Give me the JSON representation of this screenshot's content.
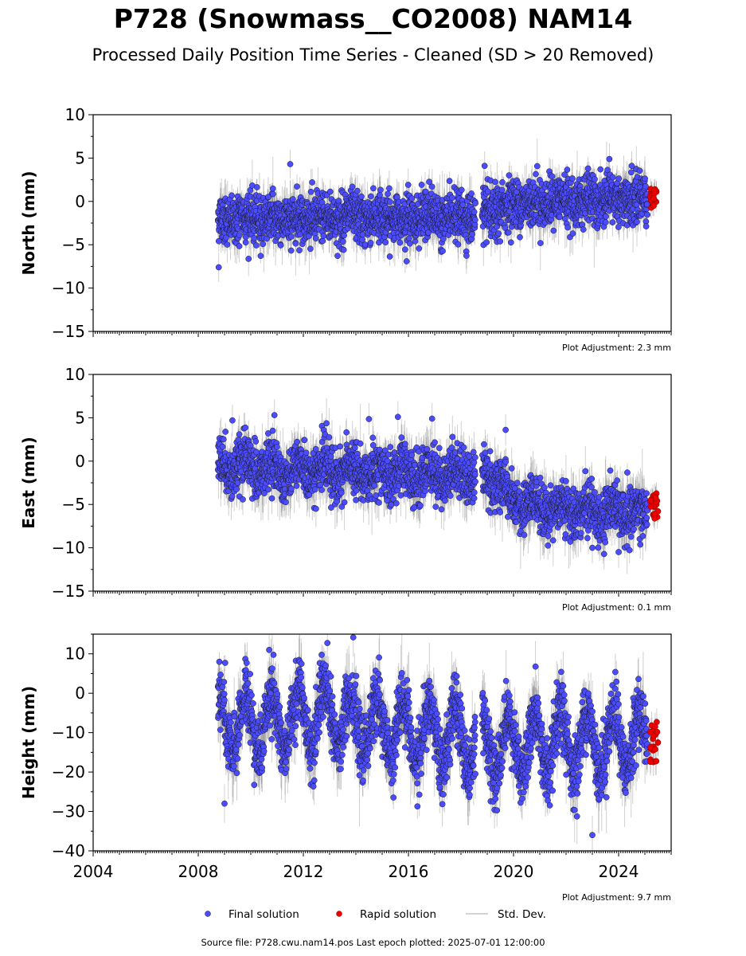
{
  "header": {
    "title": "P728 (Snowmass__CO2008) NAM14",
    "subtitle": "Processed Daily Position Time Series - Cleaned (SD > 20 Removed)"
  },
  "footer": {
    "source": "Source file: P728.cwu.nam14.pos  Last epoch plotted: 2025-07-01 12:00:00"
  },
  "legend": {
    "final_label": "Final solution",
    "rapid_label": "Rapid solution",
    "std_label": "Std. Dev."
  },
  "colors": {
    "final": "#4b4bff",
    "rapid": "#ee0000",
    "stddev": "#d3d3d3",
    "marker_edge": "#1a1a1a"
  },
  "chart_data": [
    {
      "type": "scatter",
      "panel": "north",
      "ylabel": "North (mm)",
      "xlim": [
        2004,
        2026
      ],
      "ylim": [
        -15,
        10
      ],
      "yticks": [
        -15,
        -10,
        -5,
        0,
        5,
        10
      ],
      "xticks": [
        2004,
        2008,
        2012,
        2016,
        2020,
        2024
      ],
      "show_xtick_labels": false,
      "adjustment": "Plot Adjustment: 2.3 mm",
      "final_range": [
        2008.75,
        2025.1
      ],
      "rapid_range": [
        2025.2,
        2025.5
      ],
      "gap": [
        2018.55,
        2018.8
      ],
      "series": [
        {
          "name": "Final solution",
          "trend": [
            [
              2008.75,
              -2.0
            ],
            [
              2018.55,
              -1.8
            ],
            [
              2018.8,
              -1.8
            ],
            [
              2020.0,
              -0.2
            ],
            [
              2025.1,
              0.2
            ]
          ],
          "scatter_sd": 1.4,
          "err_sd": 1.2,
          "seasonal_amp": 0.3
        },
        {
          "name": "Rapid solution",
          "center": 0.1,
          "spread": 1.5
        }
      ],
      "notable_points": [
        [
          2008.78,
          -7.6
        ],
        [
          2011.5,
          4.3
        ],
        [
          2018.9,
          4.1
        ],
        [
          2024.5,
          4.1
        ]
      ]
    },
    {
      "type": "scatter",
      "panel": "east",
      "ylabel": "East (mm)",
      "xlim": [
        2004,
        2026
      ],
      "ylim": [
        -15,
        10
      ],
      "yticks": [
        -15,
        -10,
        -5,
        0,
        5,
        10
      ],
      "xticks": [
        2004,
        2008,
        2012,
        2016,
        2020,
        2024
      ],
      "show_xtick_labels": false,
      "adjustment": "Plot Adjustment: 0.1 mm",
      "final_range": [
        2008.75,
        2025.1
      ],
      "rapid_range": [
        2025.2,
        2025.5
      ],
      "gap": [
        2018.55,
        2018.8
      ],
      "series": [
        {
          "name": "Final solution",
          "trend": [
            [
              2008.75,
              -0.5
            ],
            [
              2012.0,
              -1.0
            ],
            [
              2016.0,
              -1.5
            ],
            [
              2018.55,
              -1.5
            ],
            [
              2018.8,
              -1.8
            ],
            [
              2019.5,
              -2.5
            ],
            [
              2019.9,
              -5.0
            ],
            [
              2022.0,
              -5.5
            ],
            [
              2025.1,
              -6.0
            ]
          ],
          "scatter_sd": 1.5,
          "err_sd": 1.3,
          "seasonal_amp": 0.8
        },
        {
          "name": "Rapid solution",
          "center": -5.2,
          "spread": 1.5
        }
      ],
      "notable_points": [
        [
          2009.3,
          4.7
        ],
        [
          2010.9,
          5.3
        ],
        [
          2015.6,
          5.1
        ],
        [
          2016.9,
          4.9
        ],
        [
          2019.7,
          3.6
        ],
        [
          2023.0,
          -10.0
        ],
        [
          2024.0,
          -10.5
        ]
      ]
    },
    {
      "type": "scatter",
      "panel": "height",
      "ylabel": "Height (mm)",
      "xlim": [
        2004,
        2026
      ],
      "ylim": [
        -40,
        15
      ],
      "yticks": [
        -40,
        -30,
        -20,
        -10,
        0,
        10
      ],
      "xticks": [
        2004,
        2008,
        2012,
        2016,
        2020,
        2024
      ],
      "show_xtick_labels": true,
      "adjustment": "Plot Adjustment: 9.7 mm",
      "final_range": [
        2008.75,
        2025.1
      ],
      "rapid_range": [
        2025.2,
        2025.5
      ],
      "gap": [
        2018.55,
        2018.8
      ],
      "series": [
        {
          "name": "Final solution",
          "trend": [
            [
              2008.75,
              -8.0
            ],
            [
              2013.0,
              -6.0
            ],
            [
              2016.0,
              -10.0
            ],
            [
              2018.55,
              -12.0
            ],
            [
              2018.8,
              -13.0
            ],
            [
              2025.1,
              -12.0
            ]
          ],
          "scatter_sd": 4.0,
          "err_sd": 3.5,
          "seasonal_amp": 7.5
        },
        {
          "name": "Rapid solution",
          "center": -13.0,
          "spread": 6.0
        }
      ],
      "notable_points": [
        [
          2013.9,
          14.2
        ],
        [
          2010.7,
          11.0
        ],
        [
          2023.0,
          -36.0
        ],
        [
          2009.0,
          -28.0
        ]
      ]
    }
  ]
}
